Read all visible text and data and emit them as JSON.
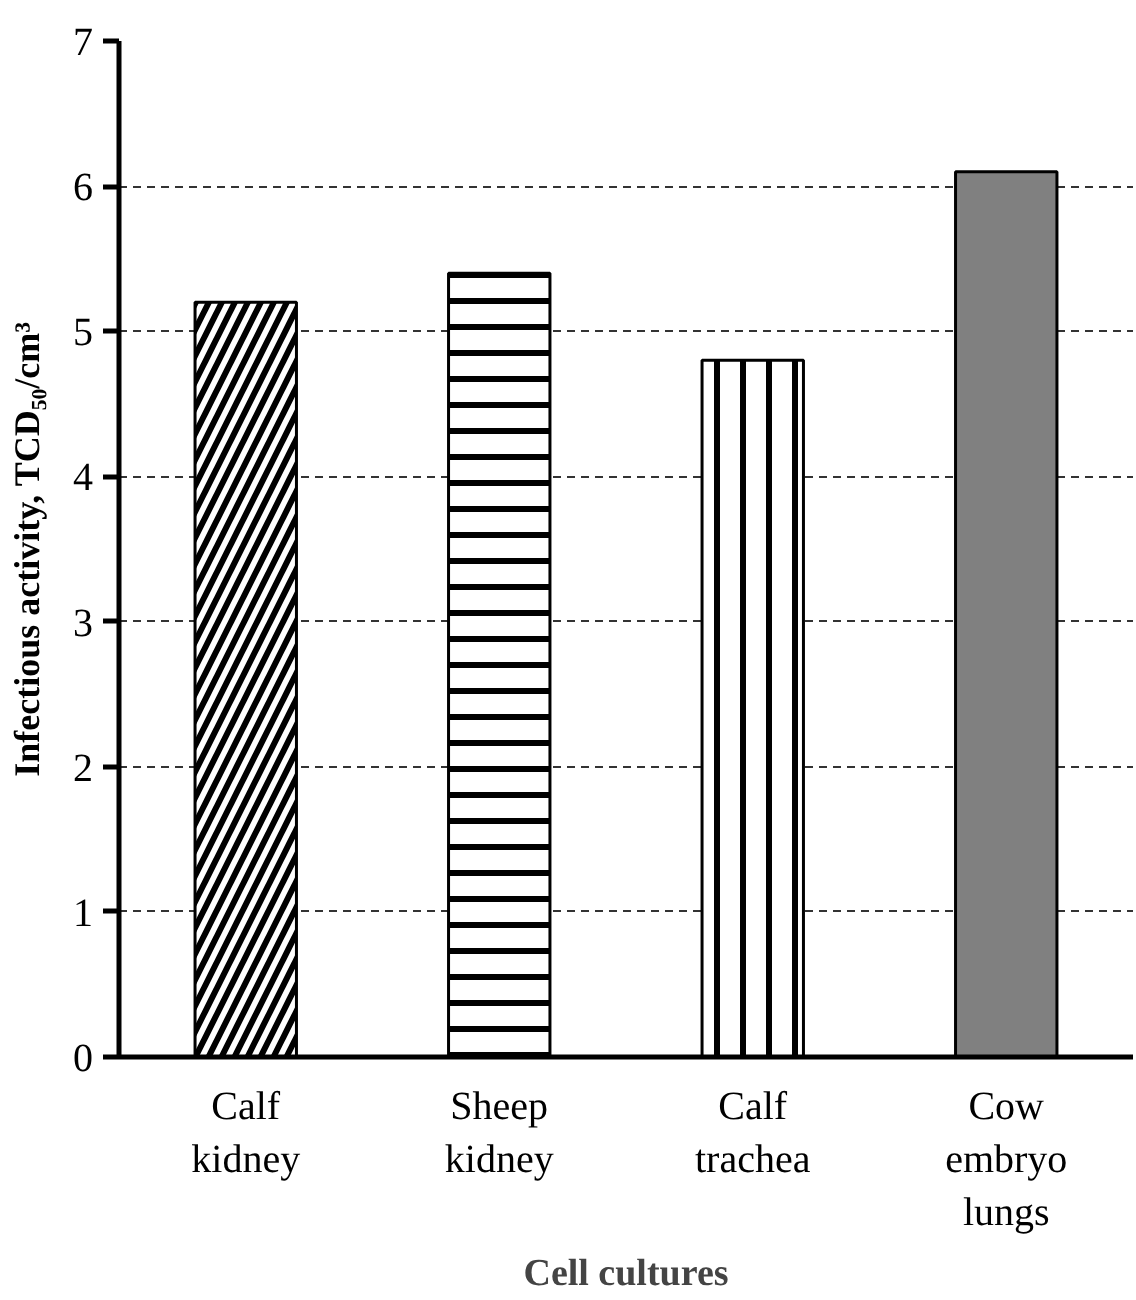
{
  "chart_data": {
    "type": "bar",
    "xlabel": "Cell cultures",
    "ylabel": "Infectious activity, TCD₅₀/cm³",
    "categories": [
      "Calf kidney",
      "Sheep kidney",
      "Calf trachea",
      "Cow embryo lungs"
    ],
    "values": [
      5.2,
      5.4,
      4.8,
      6.1
    ],
    "colors": [
      "#ffffff",
      "#ffffff",
      "#ffffff",
      "#808080"
    ],
    "ylim": [
      0,
      7
    ],
    "yticks": [
      0,
      1,
      2,
      3,
      4,
      5,
      6,
      7
    ],
    "grid": "y"
  }
}
